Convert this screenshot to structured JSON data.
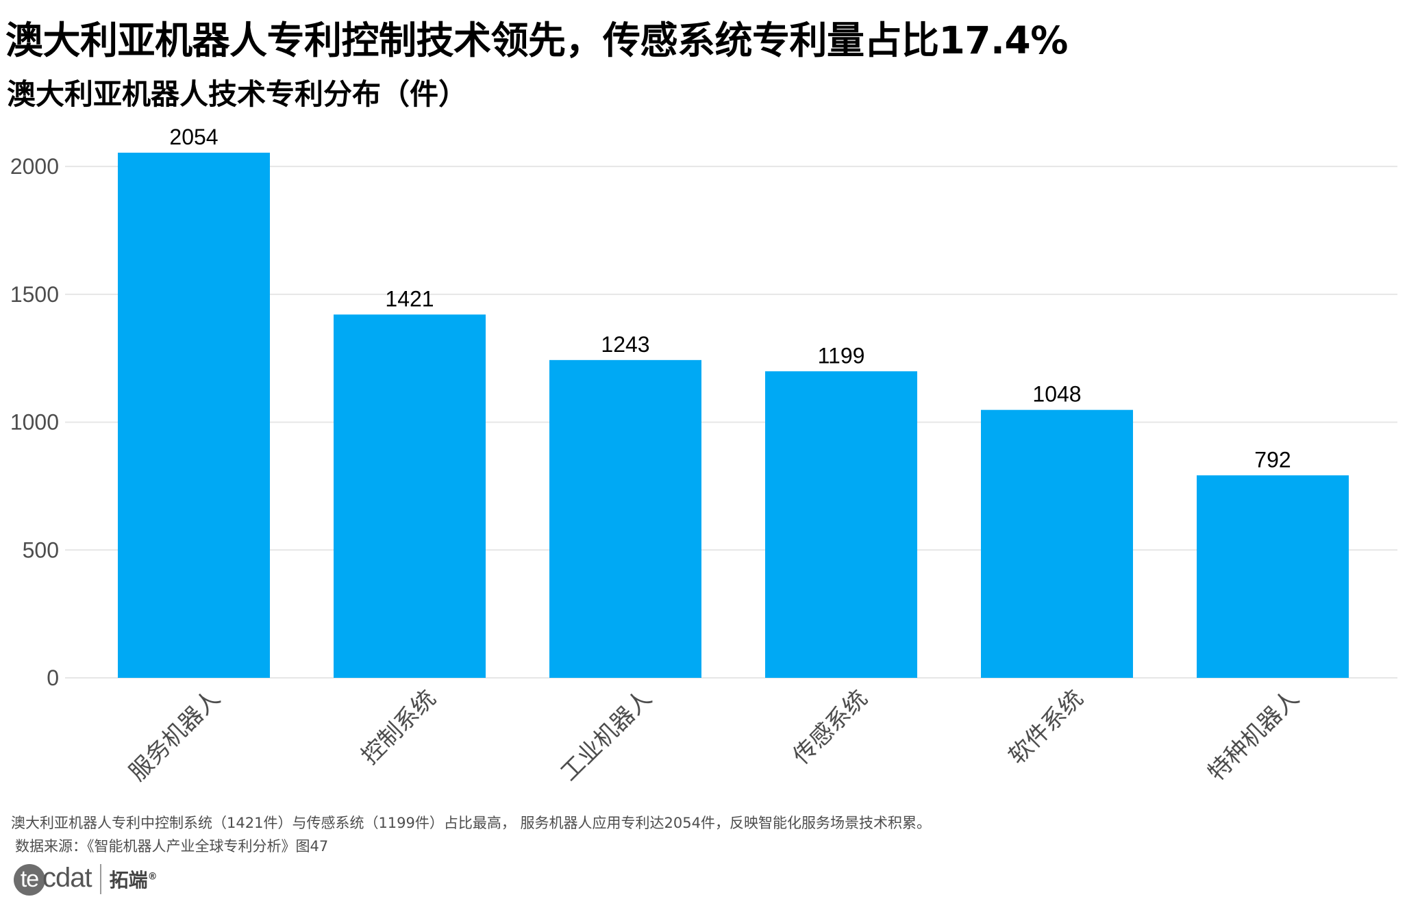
{
  "headline": "澳大利亚机器人专利控制技术领先，传感系统专利量占比17.4%",
  "footer": {
    "note": "澳大利亚机器人专利中控制系统（1421件）与传感系统（1199件）占比最高， 服务机器人应用专利达2054件，反映智能化服务场景技术积累。",
    "source": "数据来源：《智能机器人产业全球专利分析》图47"
  },
  "logo": {
    "mark": "tecdat",
    "cn": "拓端",
    "reg": "®"
  },
  "colors": {
    "bar": "#00A9F4",
    "grid": "#E6E6E6",
    "axis_text": "#4D4D4D"
  },
  "chart_data": {
    "type": "bar",
    "title": "澳大利亚机器人技术专利分布（件）",
    "xlabel": "",
    "ylabel": "",
    "categories": [
      "服务机器人",
      "控制系统",
      "工业机器人",
      "传感系统",
      "软件系统",
      "特种机器人"
    ],
    "values": [
      2054,
      1421,
      1243,
      1199,
      1048,
      792
    ],
    "ylim": [
      0,
      2054
    ],
    "yticks": [
      0,
      500,
      1000,
      1500,
      2000
    ],
    "grid": true,
    "data_labels": true
  }
}
